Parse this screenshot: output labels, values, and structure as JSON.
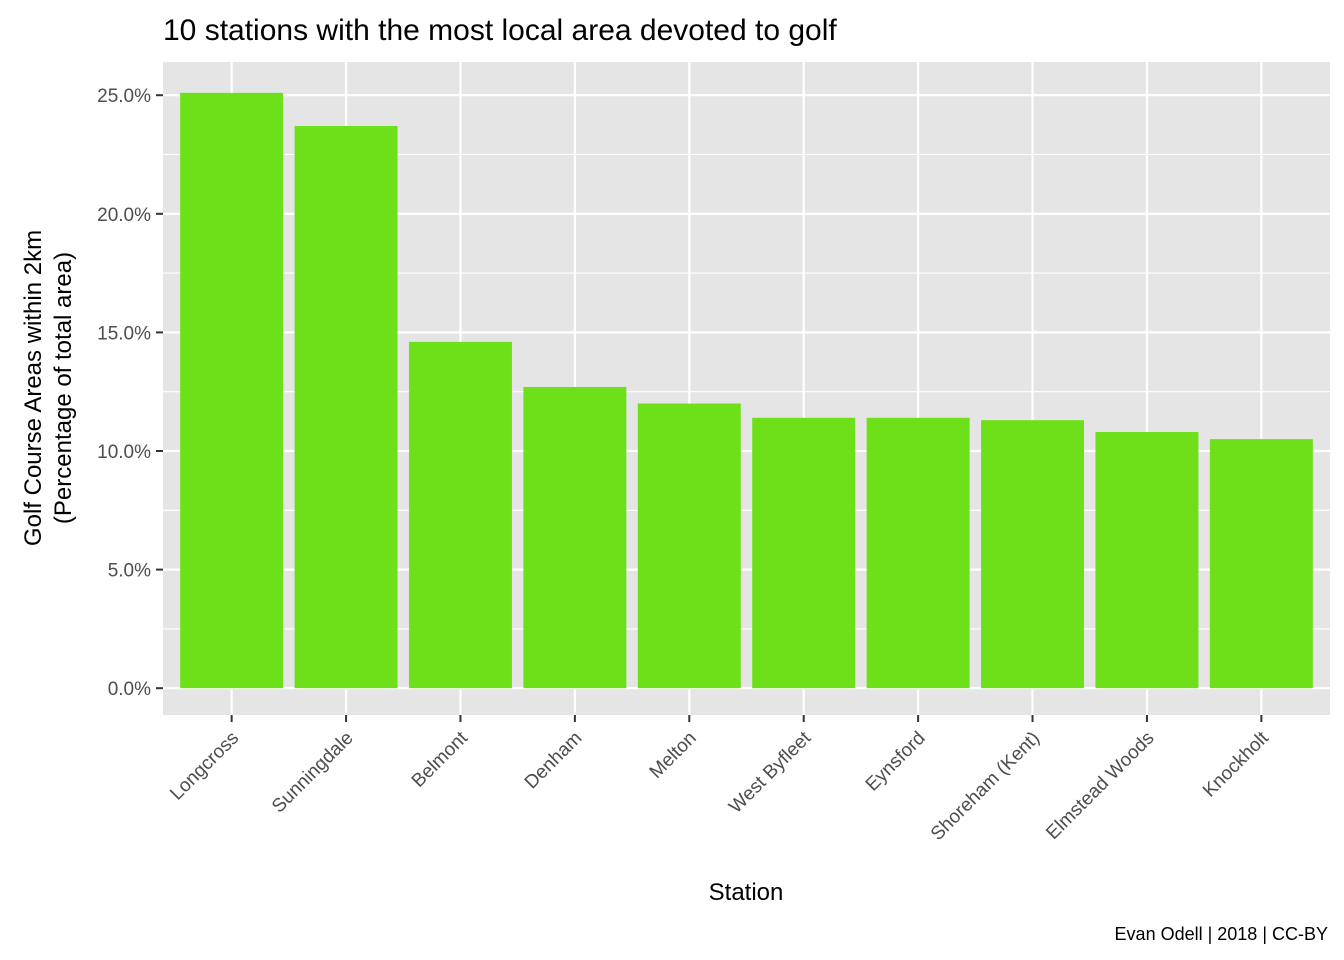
{
  "chart_data": {
    "type": "bar",
    "title": "10 stations with the most local area devoted to golf",
    "xlabel": "Station",
    "ylabel_line1": "Golf Course Areas within 2km",
    "ylabel_line2": "(Percentage of total area)",
    "caption": "Evan Odell | 2018 | CC-BY",
    "categories": [
      "Longcross",
      "Sunningdale",
      "Belmont",
      "Denham",
      "Melton",
      "West Byfleet",
      "Eynsford",
      "Shoreham (Kent)",
      "Elmstead Woods",
      "Knockholt"
    ],
    "values": [
      25.1,
      23.7,
      14.6,
      12.7,
      12.0,
      11.4,
      11.4,
      11.3,
      10.8,
      10.5
    ],
    "ylim": [
      -1.13,
      26.4
    ],
    "yticks": [
      0,
      5,
      10,
      15,
      20,
      25
    ],
    "ytick_labels": [
      "0.0%",
      "5.0%",
      "10.0%",
      "15.0%",
      "20.0%",
      "25.0%"
    ],
    "grid": true,
    "legend": "none",
    "bar_color": "#6ee01a",
    "panel_color": "#e5e5e5"
  }
}
